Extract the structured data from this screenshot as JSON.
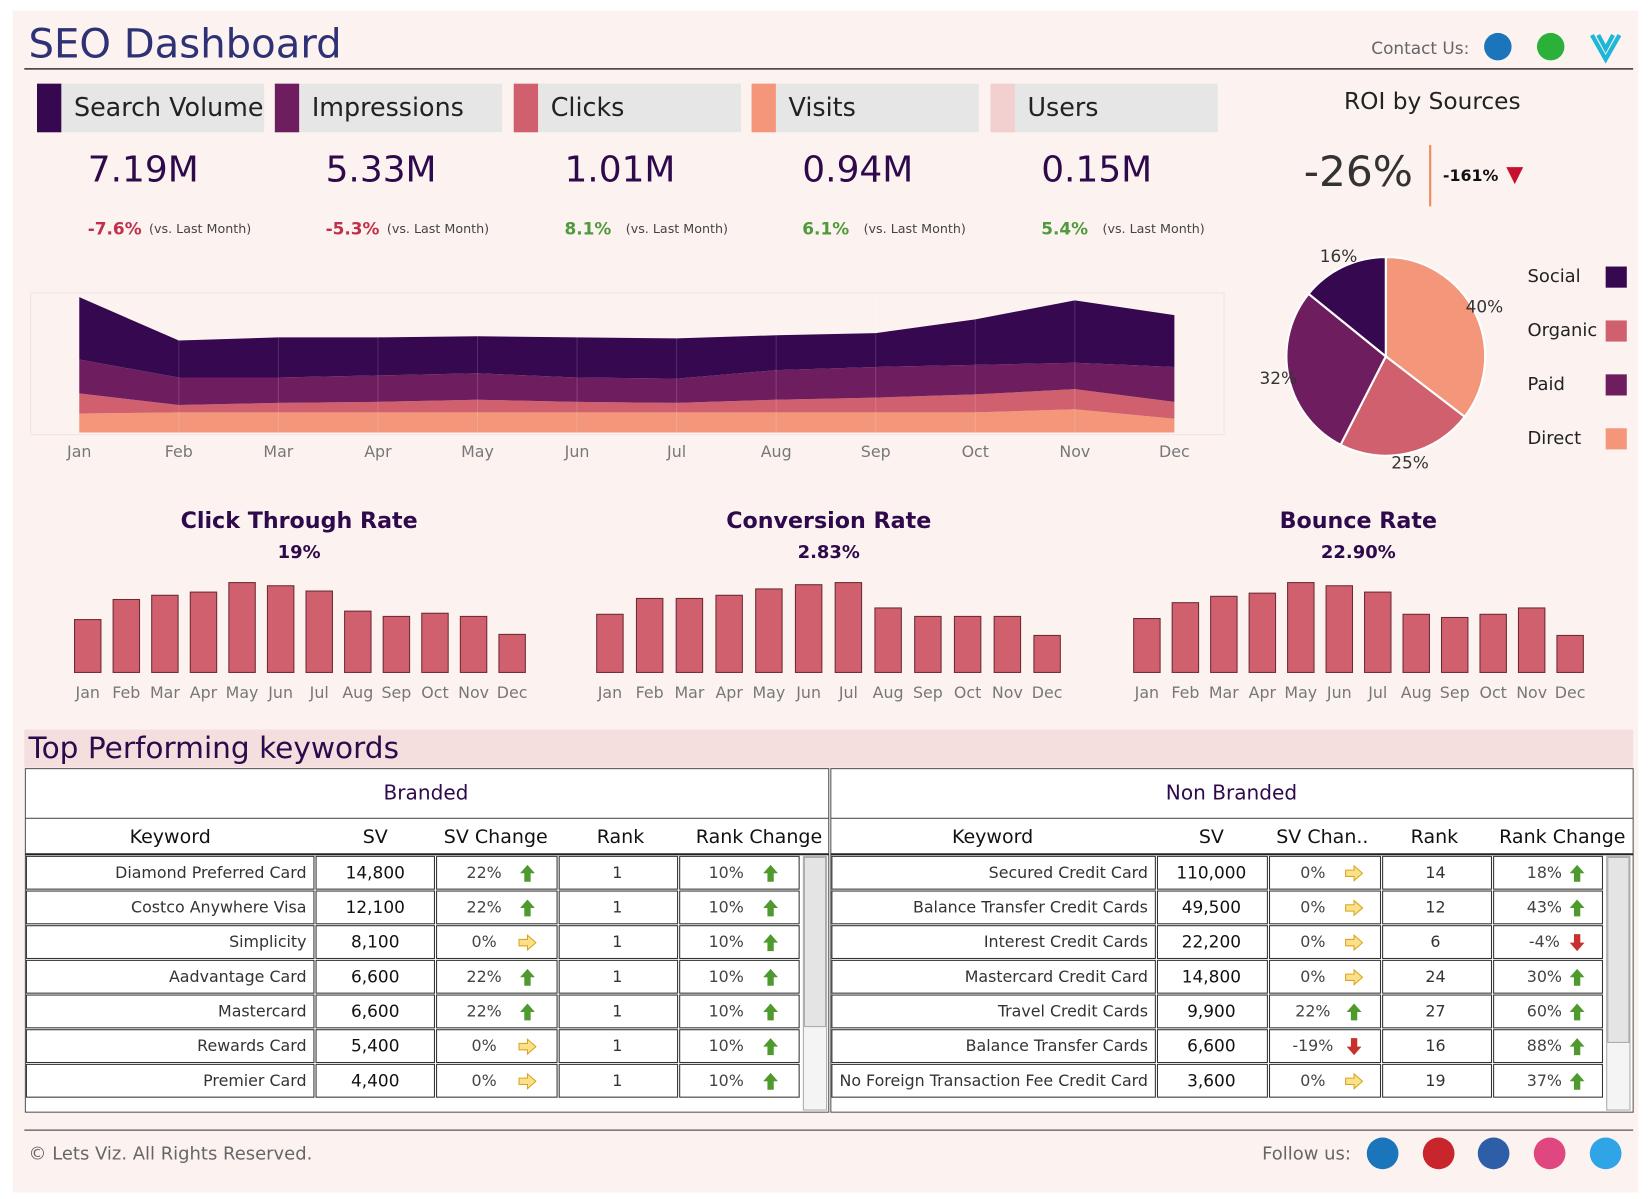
{
  "header": {
    "title": "SEO Dashboard",
    "contact_label": "Contact Us:"
  },
  "kpis": [
    {
      "label": "Search Volume",
      "value": "7.19M",
      "change": "-7.6%",
      "note": "(vs. Last Month)",
      "color": "#35084f",
      "change_color": "#c0304a"
    },
    {
      "label": "Impressions",
      "value": "5.33M",
      "change": "-5.3%",
      "note": "(vs. Last Month)",
      "color": "#6e1e5e",
      "change_color": "#c0304a"
    },
    {
      "label": "Clicks",
      "value": "1.01M",
      "change": "8.1%",
      "note": "(vs. Last Month)",
      "color": "#d0606e",
      "change_color": "#4f9a3a"
    },
    {
      "label": "Visits",
      "value": "0.94M",
      "change": "6.1%",
      "note": "(vs. Last Month)",
      "color": "#f4967a",
      "change_color": "#4f9a3a"
    },
    {
      "label": "Users",
      "value": "0.15M",
      "change": "5.4%",
      "note": "(vs. Last Month)",
      "color": "#f2d0cf",
      "change_color": "#4f9a3a"
    }
  ],
  "roi": {
    "title": "ROI by Sources",
    "value": "-26%",
    "change": "-161%"
  },
  "chart_data": [
    {
      "type": "area",
      "categories": [
        "Jan",
        "Feb",
        "Mar",
        "Apr",
        "May",
        "Jun",
        "Jul",
        "Aug",
        "Sep",
        "Oct",
        "Nov",
        "Dec"
      ],
      "ylim": [
        0,
        130
      ],
      "series": [
        {
          "color": "#f4967a",
          "values": [
            18,
            19,
            19,
            19,
            19,
            19,
            19,
            19,
            19,
            19,
            22,
            13
          ]
        },
        {
          "color": "#d0606e",
          "values": [
            19,
            7,
            9,
            10,
            12,
            10,
            9,
            12,
            14,
            17,
            19,
            16
          ]
        },
        {
          "color": "#6e1e5e",
          "values": [
            32,
            26,
            24,
            25,
            25,
            23,
            23,
            28,
            29,
            28,
            25,
            33
          ]
        },
        {
          "color": "#35084f",
          "values": [
            59,
            35,
            38,
            36,
            35,
            38,
            38,
            33,
            32,
            43,
            59,
            49
          ]
        }
      ]
    },
    {
      "type": "pie",
      "categories": [
        "Social",
        "Organic",
        "Paid",
        "Direct"
      ],
      "values": [
        16,
        25,
        32,
        40
      ],
      "value_labels": [
        "16%",
        "25%",
        "32%",
        "40%"
      ],
      "colors": [
        "#35084f",
        "#d0606e",
        "#6e1e5e",
        "#f4967a"
      ]
    },
    {
      "type": "bar",
      "title": "Click Through Rate",
      "subtitle": "19%",
      "categories": [
        "Jan",
        "Feb",
        "Mar",
        "Apr",
        "May",
        "Jun",
        "Jul",
        "Aug",
        "Sep",
        "Oct",
        "Nov",
        "Dec"
      ],
      "values": [
        50,
        69,
        73,
        76,
        85,
        82,
        77,
        58,
        53,
        56,
        53,
        36
      ],
      "ylim": [
        0,
        90
      ],
      "color": "#d0606e"
    },
    {
      "type": "bar",
      "title": "Conversion Rate",
      "subtitle": "2.83%",
      "categories": [
        "Jan",
        "Feb",
        "Mar",
        "Apr",
        "May",
        "Jun",
        "Jul",
        "Aug",
        "Sep",
        "Oct",
        "Nov",
        "Dec"
      ],
      "values": [
        55,
        70,
        70,
        73,
        79,
        83,
        85,
        61,
        53,
        53,
        53,
        35
      ],
      "ylim": [
        0,
        90
      ],
      "color": "#d0606e"
    },
    {
      "type": "bar",
      "title": "Bounce Rate",
      "subtitle": "22.90%",
      "categories": [
        "Jan",
        "Feb",
        "Mar",
        "Apr",
        "May",
        "Jun",
        "Jul",
        "Aug",
        "Sep",
        "Oct",
        "Nov",
        "Dec"
      ],
      "values": [
        51,
        66,
        72,
        75,
        85,
        82,
        76,
        55,
        52,
        55,
        61,
        35
      ],
      "ylim": [
        0,
        90
      ],
      "color": "#d0606e"
    }
  ],
  "keywords": {
    "title": "Top Performing keywords",
    "tables": [
      {
        "title": "Branded",
        "columns": [
          "Keyword",
          "SV",
          "SV Change",
          "Rank",
          "Rank Change"
        ],
        "rows": [
          [
            "Diamond Preferred Card",
            "14,800",
            "22%",
            "1",
            "10%"
          ],
          [
            "Costco Anywhere Visa",
            "12,100",
            "22%",
            "1",
            "10%"
          ],
          [
            "Simplicity",
            "8,100",
            "0%",
            "1",
            "10%"
          ],
          [
            "Aadvantage Card",
            "6,600",
            "22%",
            "1",
            "10%"
          ],
          [
            "Mastercard",
            "6,600",
            "22%",
            "1",
            "10%"
          ],
          [
            "Rewards Card",
            "5,400",
            "0%",
            "1",
            "10%"
          ],
          [
            "Premier Card",
            "4,400",
            "0%",
            "1",
            "10%"
          ]
        ],
        "trends": [
          [
            "up",
            "up"
          ],
          [
            "up",
            "up"
          ],
          [
            "flat",
            "up"
          ],
          [
            "up",
            "up"
          ],
          [
            "up",
            "up"
          ],
          [
            "flat",
            "up"
          ],
          [
            "flat",
            "up"
          ]
        ]
      },
      {
        "title": "Non Branded",
        "columns": [
          "Keyword",
          "SV",
          "SV Chan..",
          "Rank",
          "Rank Change"
        ],
        "rows": [
          [
            "Secured Credit Card",
            "110,000",
            "0%",
            "14",
            "18%"
          ],
          [
            "Balance Transfer Credit Cards",
            "49,500",
            "0%",
            "12",
            "43%"
          ],
          [
            "Interest Credit Cards",
            "22,200",
            "0%",
            "6",
            "-4%"
          ],
          [
            "Mastercard Credit Card",
            "14,800",
            "0%",
            "24",
            "30%"
          ],
          [
            "Travel Credit Cards",
            "9,900",
            "22%",
            "27",
            "60%"
          ],
          [
            "Balance Transfer Cards",
            "6,600",
            "-19%",
            "16",
            "88%"
          ],
          [
            "No Foreign Transaction Fee Credit Card",
            "3,600",
            "0%",
            "19",
            "37%"
          ]
        ],
        "trends": [
          [
            "flat",
            "up"
          ],
          [
            "flat",
            "up"
          ],
          [
            "flat",
            "down"
          ],
          [
            "flat",
            "up"
          ],
          [
            "up",
            "up"
          ],
          [
            "down",
            "up"
          ],
          [
            "flat",
            "up"
          ]
        ]
      }
    ]
  },
  "footer": {
    "copyright": "© Lets Viz. All Rights Reserved.",
    "follow_label": "Follow us:"
  }
}
